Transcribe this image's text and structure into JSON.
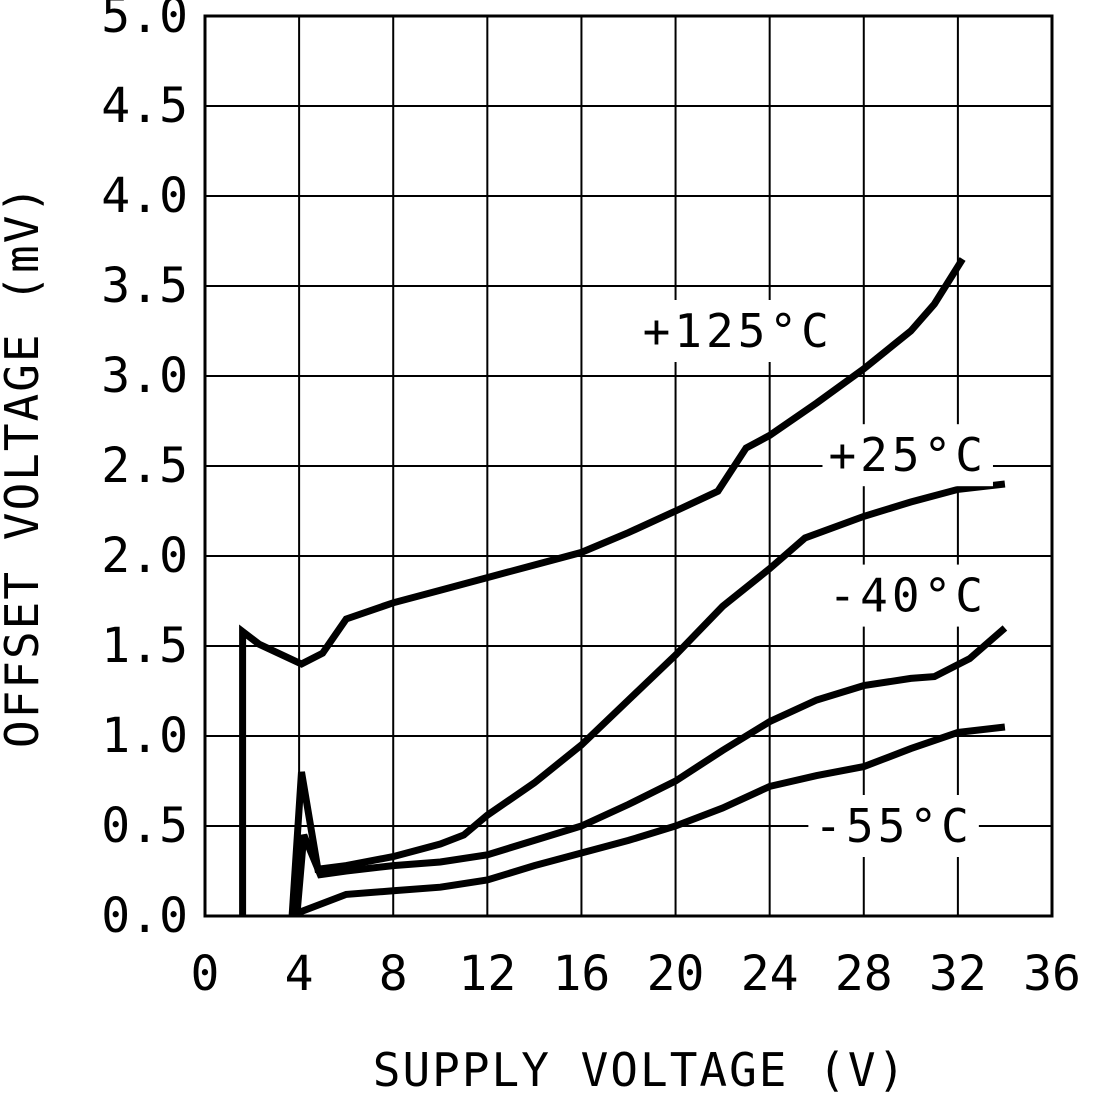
{
  "chart_data": {
    "type": "line",
    "xlabel": "SUPPLY VOLTAGE (V)",
    "ylabel": "OFFSET VOLTAGE (mV)",
    "xlim": [
      0,
      36
    ],
    "ylim": [
      0,
      5
    ],
    "x_ticks": [
      "0",
      "4",
      "8",
      "12",
      "16",
      "20",
      "24",
      "28",
      "32",
      "36"
    ],
    "y_ticks": [
      "0.0",
      "0.5",
      "1.0",
      "1.5",
      "2.0",
      "2.5",
      "3.0",
      "3.5",
      "4.0",
      "4.5",
      "5.0"
    ],
    "grid": true,
    "legend_position": "inline-labels",
    "line_color": "#000000",
    "background_color": "#ffffff",
    "series": [
      {
        "name": "+125°C",
        "id": "curve-plus-125c",
        "label_pos": [
          18.6,
          3.25
        ],
        "points": [
          [
            1.6,
            0
          ],
          [
            1.6,
            1.58
          ],
          [
            2.3,
            1.51
          ],
          [
            4.1,
            1.4
          ],
          [
            5,
            1.46
          ],
          [
            6,
            1.65
          ],
          [
            8,
            1.74
          ],
          [
            10,
            1.81
          ],
          [
            12,
            1.88
          ],
          [
            14,
            1.95
          ],
          [
            16,
            2.02
          ],
          [
            18,
            2.13
          ],
          [
            20,
            2.25
          ],
          [
            21.8,
            2.36
          ],
          [
            23,
            2.6
          ],
          [
            24,
            2.67
          ],
          [
            26,
            2.85
          ],
          [
            28,
            3.04
          ],
          [
            30,
            3.25
          ],
          [
            31,
            3.4
          ],
          [
            32.2,
            3.65
          ]
        ]
      },
      {
        "name": "+25°C",
        "id": "curve-plus-25c",
        "label_pos": [
          26.5,
          2.56
        ],
        "points": [
          [
            3.7,
            0
          ],
          [
            4.1,
            0.8
          ],
          [
            4.8,
            0.26
          ],
          [
            6,
            0.28
          ],
          [
            8,
            0.33
          ],
          [
            10,
            0.4
          ],
          [
            11,
            0.45
          ],
          [
            12,
            0.56
          ],
          [
            14,
            0.74
          ],
          [
            16,
            0.95
          ],
          [
            18,
            1.2
          ],
          [
            20,
            1.45
          ],
          [
            22,
            1.72
          ],
          [
            24,
            1.93
          ],
          [
            25.5,
            2.1
          ],
          [
            28,
            2.22
          ],
          [
            30,
            2.3
          ],
          [
            32,
            2.37
          ],
          [
            34,
            2.4
          ]
        ]
      },
      {
        "name": "-40°C",
        "id": "curve-minus-40c",
        "label_pos": [
          26.5,
          1.78
        ],
        "points": [
          [
            3.9,
            0
          ],
          [
            4.2,
            0.45
          ],
          [
            4.9,
            0.23
          ],
          [
            6,
            0.25
          ],
          [
            8,
            0.28
          ],
          [
            10,
            0.3
          ],
          [
            12,
            0.34
          ],
          [
            14,
            0.42
          ],
          [
            16,
            0.5
          ],
          [
            18,
            0.62
          ],
          [
            20,
            0.75
          ],
          [
            22,
            0.92
          ],
          [
            24,
            1.08
          ],
          [
            26,
            1.2
          ],
          [
            28,
            1.28
          ],
          [
            30,
            1.32
          ],
          [
            31,
            1.33
          ],
          [
            32.5,
            1.43
          ],
          [
            34,
            1.6
          ]
        ]
      },
      {
        "name": "-55°C",
        "id": "curve-minus-55c",
        "label_pos": [
          25.9,
          0.5
        ],
        "points": [
          [
            4,
            0.02
          ],
          [
            6,
            0.12
          ],
          [
            8,
            0.14
          ],
          [
            10,
            0.16
          ],
          [
            12,
            0.2
          ],
          [
            14,
            0.28
          ],
          [
            16,
            0.35
          ],
          [
            18,
            0.42
          ],
          [
            20,
            0.5
          ],
          [
            22,
            0.6
          ],
          [
            24,
            0.72
          ],
          [
            26,
            0.78
          ],
          [
            28,
            0.83
          ],
          [
            30,
            0.93
          ],
          [
            32,
            1.02
          ],
          [
            34,
            1.05
          ]
        ]
      }
    ]
  }
}
